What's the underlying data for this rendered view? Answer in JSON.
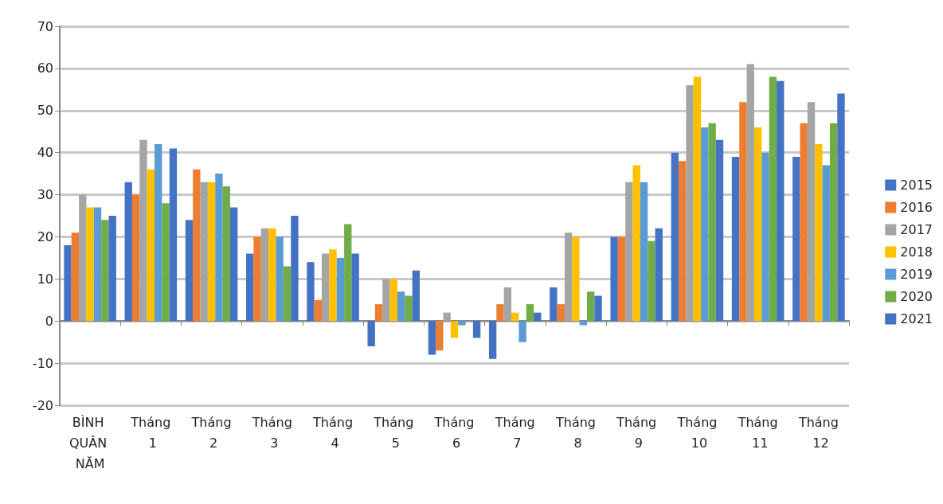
{
  "chart_data": {
    "type": "bar",
    "categories": [
      "BÌNH QUÂN NĂM",
      "Tháng 1",
      "Tháng 2",
      "Tháng 3",
      "Tháng 4",
      "Tháng 5",
      "Tháng 6",
      "Tháng 7",
      "Tháng 8",
      "Tháng 9",
      "Tháng 10",
      "Tháng 11",
      "Tháng 12"
    ],
    "series": [
      {
        "name": "2015",
        "color": "#4472c4",
        "values": [
          18,
          33,
          24,
          16,
          14,
          -6,
          -8,
          -9,
          8,
          20,
          40,
          39,
          39
        ]
      },
      {
        "name": "2016",
        "color": "#ed7d31",
        "values": [
          21,
          30,
          36,
          20,
          5,
          4,
          -7,
          4,
          4,
          20,
          38,
          52,
          47
        ]
      },
      {
        "name": "2017",
        "color": "#a5a5a5",
        "values": [
          30,
          43,
          33,
          22,
          16,
          10,
          2,
          8,
          21,
          33,
          56,
          61,
          52
        ]
      },
      {
        "name": "2018",
        "color": "#ffc000",
        "values": [
          27,
          36,
          33,
          22,
          17,
          10,
          -4,
          2,
          20,
          37,
          58,
          46,
          42
        ]
      },
      {
        "name": "2019",
        "color": "#5b9bd5",
        "values": [
          27,
          42,
          35,
          20,
          15,
          7,
          -1,
          -5,
          -1,
          33,
          46,
          40,
          37
        ]
      },
      {
        "name": "2020",
        "color": "#70ad47",
        "values": [
          24,
          28,
          32,
          13,
          23,
          6,
          0,
          4,
          7,
          19,
          47,
          58,
          47
        ]
      },
      {
        "name": "2021",
        "color": "#4472c4",
        "values": [
          25,
          41,
          27,
          25,
          16,
          12,
          -4,
          2,
          6,
          22,
          43,
          57,
          54
        ]
      }
    ],
    "ylim": [
      -20,
      70
    ],
    "yticks": [
      -20,
      -10,
      0,
      10,
      20,
      30,
      40,
      50,
      60,
      70
    ],
    "grid": "y",
    "legend": "right"
  }
}
